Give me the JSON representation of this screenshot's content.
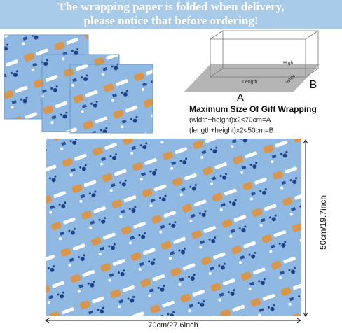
{
  "banner": {
    "line1": "The wrapping paper is folded when delivery,",
    "line2": "please notice that before ordering!"
  },
  "diagram": {
    "high": "High",
    "length": "Length",
    "wide": "Wide",
    "label_a": "A",
    "label_b": "B"
  },
  "size_info": {
    "title": "Maximum Size Of Gift Wrapping",
    "rule_a": "(width+height)x2<70cm=A",
    "rule_b": "(length+height)x2<50cm=B"
  },
  "dimensions": {
    "height": "50cm/19.7inch",
    "width": "70cm/27.6inch"
  }
}
